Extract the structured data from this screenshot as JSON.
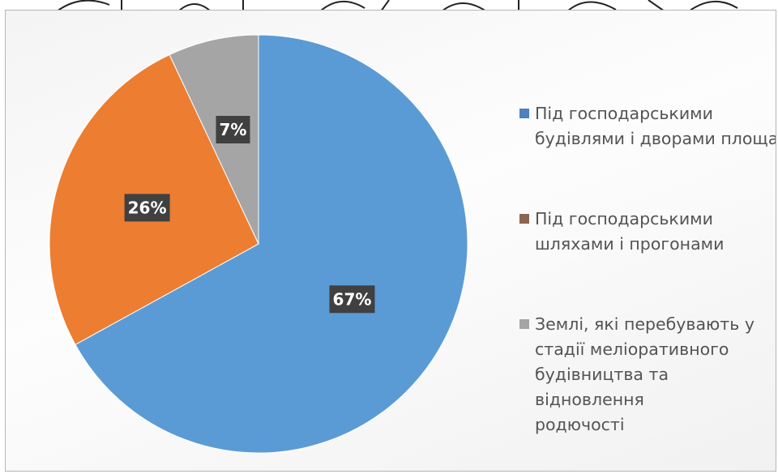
{
  "chart_data": {
    "type": "pie",
    "categories": [
      "Під господарськими будівлями і дворами площа",
      "Під господарськими шляхами і прогонами",
      "Землі, які перебувають у стадії меліоративного будівництва та відновлення родючості"
    ],
    "values": [
      67,
      26,
      7
    ],
    "data_labels": [
      "67%",
      "26%",
      "7%"
    ],
    "colors": [
      "#5B9BD5",
      "#ED7D31",
      "#A5A5A5"
    ],
    "legend_position": "right",
    "start_angle_deg": 0,
    "direction": "clockwise"
  },
  "legend": {
    "items": [
      {
        "line1": "Під господарськими",
        "line2": "будівлями і дворами площа",
        "line3": "",
        "line4": ""
      },
      {
        "line1": "Під господарськими",
        "line2": "шляхами і прогонами",
        "line3": "",
        "line4": ""
      },
      {
        "line1": "Землі, які перебувають у",
        "line2": "стадії меліоративного",
        "line3": "будівництва та відновлення",
        "line4": "родючості"
      }
    ],
    "swatch_colors": [
      "#4F81BD",
      "#8C6551",
      "#A5A5A5"
    ]
  },
  "label_box_color": "#404040",
  "label_text_color": "#ffffff"
}
